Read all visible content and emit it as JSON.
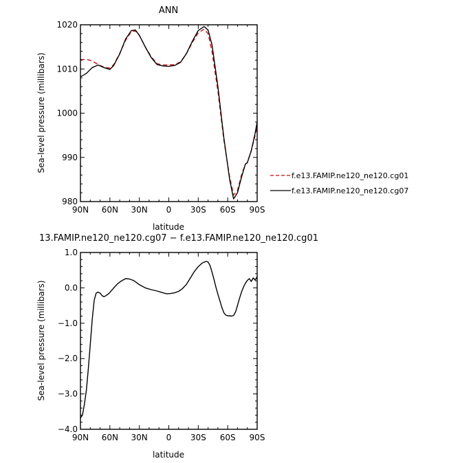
{
  "chart_data": [
    {
      "type": "line",
      "title": "ANN",
      "xlabel": "latitude",
      "ylabel": "Sea-level pressure (millibars)",
      "xlim": [
        90,
        -90
      ],
      "ylim": [
        980,
        1020
      ],
      "xticks": [
        {
          "value": 90,
          "label": "90N"
        },
        {
          "value": 60,
          "label": "60N"
        },
        {
          "value": 30,
          "label": "30N"
        },
        {
          "value": 0,
          "label": "0"
        },
        {
          "value": -30,
          "label": "30S"
        },
        {
          "value": -60,
          "label": "60S"
        },
        {
          "value": -90,
          "label": "90S"
        }
      ],
      "yticks": [
        {
          "value": 980,
          "label": "980"
        },
        {
          "value": 990,
          "label": "990"
        },
        {
          "value": 1000,
          "label": "1000"
        },
        {
          "value": 1010,
          "label": "1010"
        },
        {
          "value": 1020,
          "label": "1020"
        }
      ],
      "legend": "outside-right",
      "series": [
        {
          "name": "f.e13.FAMIP.ne120_ne120.cg01",
          "color": "#dd0000",
          "dash": "dashed",
          "points": [
            [
              90,
              1012.1
            ],
            [
              84,
              1012.2
            ],
            [
              78,
              1011.8
            ],
            [
              72,
              1011.0
            ],
            [
              66,
              1010.4
            ],
            [
              60,
              1010.2
            ],
            [
              56,
              1011.0
            ],
            [
              50,
              1013.5
            ],
            [
              44,
              1016.5
            ],
            [
              38,
              1018.5
            ],
            [
              34,
              1018.6
            ],
            [
              30,
              1017.6
            ],
            [
              24,
              1015.0
            ],
            [
              18,
              1012.8
            ],
            [
              12,
              1011.2
            ],
            [
              6,
              1010.9
            ],
            [
              0,
              1010.9
            ],
            [
              -6,
              1011.0
            ],
            [
              -12,
              1011.6
            ],
            [
              -18,
              1013.5
            ],
            [
              -24,
              1016.0
            ],
            [
              -30,
              1018.2
            ],
            [
              -36,
              1019.0
            ],
            [
              -40,
              1018.0
            ],
            [
              -44,
              1014.0
            ],
            [
              -50,
              1005.0
            ],
            [
              -56,
              994.0
            ],
            [
              -62,
              985.5
            ],
            [
              -66,
              981.5
            ],
            [
              -70,
              982.5
            ],
            [
              -74,
              986.0
            ],
            [
              -78,
              988.5
            ],
            [
              -80,
              988.8
            ],
            [
              -84,
              991.5
            ],
            [
              -88,
              995.0
            ],
            [
              -90,
              997.0
            ]
          ]
        },
        {
          "name": "f.e13.FAMIP.ne120_ne120.cg07",
          "color": "#000000",
          "dash": "solid",
          "points": [
            [
              90,
              1008.2
            ],
            [
              84,
              1009.0
            ],
            [
              78,
              1010.3
            ],
            [
              72,
              1010.9
            ],
            [
              66,
              1010.3
            ],
            [
              60,
              1009.9
            ],
            [
              56,
              1010.8
            ],
            [
              50,
              1013.4
            ],
            [
              44,
              1016.8
            ],
            [
              38,
              1018.7
            ],
            [
              34,
              1018.8
            ],
            [
              30,
              1017.6
            ],
            [
              24,
              1015.0
            ],
            [
              18,
              1012.6
            ],
            [
              12,
              1011.0
            ],
            [
              6,
              1010.7
            ],
            [
              0,
              1010.6
            ],
            [
              -6,
              1010.8
            ],
            [
              -12,
              1011.5
            ],
            [
              -18,
              1013.5
            ],
            [
              -24,
              1016.3
            ],
            [
              -30,
              1018.7
            ],
            [
              -36,
              1019.6
            ],
            [
              -40,
              1018.8
            ],
            [
              -44,
              1015.5
            ],
            [
              -50,
              1006.0
            ],
            [
              -56,
              994.5
            ],
            [
              -62,
              985.0
            ],
            [
              -66,
              980.6
            ],
            [
              -70,
              982.0
            ],
            [
              -74,
              985.5
            ],
            [
              -78,
              988.5
            ],
            [
              -80,
              988.8
            ],
            [
              -84,
              991.5
            ],
            [
              -88,
              995.5
            ],
            [
              -90,
              998.0
            ]
          ]
        }
      ]
    },
    {
      "type": "line",
      "title": "13.FAMIP.ne120_ne120.cg07 − f.e13.FAMIP.ne120_ne120.cg01",
      "xlabel": "latitude",
      "ylabel": "Sea-level pressure (millibars)",
      "xlim": [
        90,
        -90
      ],
      "ylim": [
        -4.0,
        1.0
      ],
      "xticks": [
        {
          "value": 90,
          "label": "90N"
        },
        {
          "value": 60,
          "label": "60N"
        },
        {
          "value": 30,
          "label": "30N"
        },
        {
          "value": 0,
          "label": "0"
        },
        {
          "value": -30,
          "label": "30S"
        },
        {
          "value": -60,
          "label": "60S"
        },
        {
          "value": -90,
          "label": "90S"
        }
      ],
      "yticks": [
        {
          "value": 1.0,
          "label": "1.0"
        },
        {
          "value": 0.0,
          "label": "0.0"
        },
        {
          "value": -1.0,
          "label": "−1.0"
        },
        {
          "value": -2.0,
          "label": "−2.0"
        },
        {
          "value": -3.0,
          "label": "−3.0"
        },
        {
          "value": -4.0,
          "label": "−4.0"
        }
      ],
      "series": [
        {
          "color": "#000000",
          "dash": "solid",
          "points": [
            [
              90,
              -3.68
            ],
            [
              88,
              -3.6
            ],
            [
              86,
              -3.3
            ],
            [
              84,
              -2.9
            ],
            [
              82,
              -2.3
            ],
            [
              80,
              -1.6
            ],
            [
              78,
              -0.9
            ],
            [
              76,
              -0.35
            ],
            [
              74,
              -0.15
            ],
            [
              72,
              -0.12
            ],
            [
              70,
              -0.15
            ],
            [
              68,
              -0.22
            ],
            [
              66,
              -0.25
            ],
            [
              64,
              -0.22
            ],
            [
              62,
              -0.18
            ],
            [
              60,
              -0.13
            ],
            [
              56,
              0.0
            ],
            [
              52,
              0.12
            ],
            [
              48,
              0.2
            ],
            [
              44,
              0.26
            ],
            [
              40,
              0.25
            ],
            [
              36,
              0.21
            ],
            [
              30,
              0.09
            ],
            [
              24,
              0.0
            ],
            [
              18,
              -0.05
            ],
            [
              12,
              -0.09
            ],
            [
              6,
              -0.14
            ],
            [
              2,
              -0.17
            ],
            [
              -2,
              -0.16
            ],
            [
              -6,
              -0.14
            ],
            [
              -10,
              -0.1
            ],
            [
              -14,
              -0.02
            ],
            [
              -18,
              0.1
            ],
            [
              -22,
              0.28
            ],
            [
              -26,
              0.46
            ],
            [
              -30,
              0.6
            ],
            [
              -34,
              0.7
            ],
            [
              -38,
              0.75
            ],
            [
              -40,
              0.73
            ],
            [
              -42,
              0.63
            ],
            [
              -44,
              0.45
            ],
            [
              -46,
              0.24
            ],
            [
              -48,
              0.02
            ],
            [
              -50,
              -0.18
            ],
            [
              -52,
              -0.36
            ],
            [
              -54,
              -0.55
            ],
            [
              -56,
              -0.7
            ],
            [
              -58,
              -0.77
            ],
            [
              -60,
              -0.79
            ],
            [
              -62,
              -0.79
            ],
            [
              -64,
              -0.8
            ],
            [
              -66,
              -0.78
            ],
            [
              -68,
              -0.68
            ],
            [
              -70,
              -0.5
            ],
            [
              -72,
              -0.3
            ],
            [
              -74,
              -0.12
            ],
            [
              -76,
              0.02
            ],
            [
              -78,
              0.13
            ],
            [
              -80,
              0.21
            ],
            [
              -82,
              0.26
            ],
            [
              -84,
              0.18
            ],
            [
              -86,
              0.28
            ],
            [
              -88,
              0.22
            ],
            [
              -90,
              0.32
            ]
          ]
        }
      ]
    }
  ]
}
